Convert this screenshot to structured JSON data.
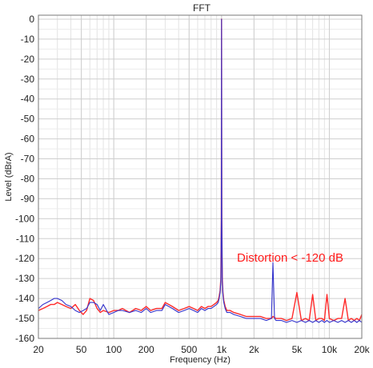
{
  "chart_data": {
    "type": "line",
    "title": "FFT",
    "xlabel": "Frequency (Hz)",
    "ylabel": "Level (dBrA)",
    "x_scale": "log",
    "xlim": [
      20,
      20000
    ],
    "ylim": [
      -160,
      5
    ],
    "grid": true,
    "x_ticks": [
      {
        "value": 20,
        "label": "20"
      },
      {
        "value": 50,
        "label": "50"
      },
      {
        "value": 100,
        "label": "100"
      },
      {
        "value": 200,
        "label": "200"
      },
      {
        "value": 500,
        "label": "500"
      },
      {
        "value": 1000,
        "label": "1k"
      },
      {
        "value": 2000,
        "label": "2k"
      },
      {
        "value": 5000,
        "label": "5k"
      },
      {
        "value": 10000,
        "label": "10k"
      },
      {
        "value": 20000,
        "label": "20k"
      }
    ],
    "y_ticks": [
      0,
      -10,
      -20,
      -30,
      -40,
      -50,
      -60,
      -70,
      -80,
      -90,
      -100,
      -110,
      -120,
      -130,
      -140,
      -150,
      -160
    ],
    "annotation": {
      "text": "Distortion < -120 dB",
      "x": 5000,
      "y": -120,
      "color": "#ff1a1a"
    },
    "colors": {
      "red": "#ff2a2a",
      "blue": "#3333cc"
    },
    "series": [
      {
        "color": "#ff2a2a",
        "x": [
          20,
          22,
          24,
          26,
          28,
          30,
          33,
          36,
          40,
          44,
          48,
          52,
          56,
          60,
          65,
          70,
          75,
          80,
          90,
          100,
          110,
          120,
          140,
          160,
          180,
          200,
          220,
          250,
          280,
          300,
          350,
          400,
          450,
          500,
          550,
          600,
          650,
          700,
          750,
          800,
          850,
          900,
          930,
          950,
          970,
          985,
          995,
          1000,
          1005,
          1015,
          1030,
          1050,
          1080,
          1120,
          1200,
          1300,
          1500,
          1700,
          2000,
          2300,
          2600,
          2900,
          3000,
          3200,
          3600,
          4000,
          4500,
          5000,
          5500,
          6000,
          6500,
          7000,
          7500,
          8000,
          8500,
          9000,
          9500,
          10000,
          11000,
          12000,
          13000,
          14000,
          15000,
          16000,
          17000,
          18000,
          19000,
          20000
        ],
        "y": [
          -146,
          -145,
          -144,
          -143,
          -143,
          -142,
          -143,
          -144,
          -145,
          -143,
          -146,
          -148,
          -146,
          -140,
          -141,
          -145,
          -147,
          -146,
          -147,
          -146,
          -146,
          -145,
          -147,
          -145,
          -146,
          -144,
          -146,
          -145,
          -145,
          -142,
          -144,
          -146,
          -145,
          -144,
          -145,
          -146,
          -144,
          -145,
          -144,
          -144,
          -143,
          -142,
          -141,
          -139,
          -136,
          -130,
          -100,
          0,
          -100,
          -130,
          -137,
          -141,
          -144,
          -146,
          -146,
          -147,
          -148,
          -149,
          -149,
          -149,
          -150,
          -150,
          -149,
          -150,
          -150,
          -151,
          -150,
          -137,
          -151,
          -150,
          -151,
          -138,
          -151,
          -150,
          -150,
          -151,
          -138,
          -150,
          -151,
          -150,
          -150,
          -140,
          -151,
          -150,
          -151,
          -150,
          -151,
          -148
        ]
      },
      {
        "color": "#3333cc",
        "x": [
          20,
          22,
          24,
          26,
          28,
          30,
          33,
          36,
          40,
          44,
          48,
          52,
          56,
          60,
          65,
          70,
          75,
          80,
          90,
          100,
          110,
          120,
          140,
          160,
          180,
          200,
          220,
          250,
          280,
          300,
          350,
          400,
          450,
          500,
          550,
          600,
          650,
          700,
          750,
          800,
          850,
          900,
          930,
          950,
          970,
          985,
          995,
          1000,
          1005,
          1015,
          1030,
          1050,
          1080,
          1120,
          1200,
          1300,
          1500,
          1700,
          2000,
          2300,
          2600,
          2900,
          3000,
          3100,
          3200,
          3600,
          4000,
          4500,
          5000,
          5500,
          6000,
          6500,
          7000,
          7500,
          8000,
          8500,
          9000,
          9500,
          10000,
          11000,
          12000,
          13000,
          14000,
          15000,
          16000,
          17000,
          18000,
          19000,
          20000
        ],
        "y": [
          -145,
          -143,
          -142,
          -141,
          -140,
          -140,
          -141,
          -143,
          -144,
          -146,
          -147,
          -146,
          -145,
          -142,
          -142,
          -143,
          -146,
          -143,
          -148,
          -147,
          -146,
          -146,
          -147,
          -146,
          -147,
          -145,
          -147,
          -146,
          -146,
          -143,
          -145,
          -147,
          -146,
          -145,
          -146,
          -147,
          -145,
          -146,
          -145,
          -145,
          -144,
          -143,
          -142,
          -140,
          -137,
          -131,
          -100,
          0,
          -100,
          -131,
          -138,
          -142,
          -145,
          -147,
          -147,
          -148,
          -149,
          -150,
          -150,
          -150,
          -151,
          -150,
          -122,
          -150,
          -151,
          -151,
          -152,
          -151,
          -152,
          -151,
          -152,
          -151,
          -152,
          -151,
          -152,
          -151,
          -152,
          -151,
          -152,
          -151,
          -152,
          -151,
          -152,
          -151,
          -152,
          -151,
          -152,
          -151,
          -152
        ]
      }
    ]
  }
}
